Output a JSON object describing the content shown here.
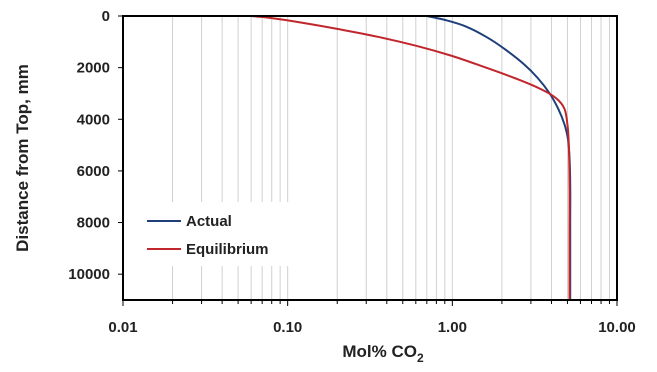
{
  "chart_data": {
    "type": "line",
    "xlabel": "Mol% CO",
    "xlabel_subscript": "2",
    "ylabel": "Distance from Top, mm",
    "xscale": "log",
    "xlim": [
      0.01,
      10
    ],
    "ylim": [
      0,
      11000
    ],
    "y_inverted": true,
    "x_ticks": [
      "0.01",
      "0.10",
      "1.00",
      "10.00"
    ],
    "y_ticks": [
      "0",
      "2000",
      "4000",
      "6000",
      "8000",
      "10000"
    ],
    "grid": "vertical minor log gridlines",
    "legend_position": "bottom-left",
    "colors": {
      "actual": "#1f3f7a",
      "equilibrium": "#c0262b",
      "grid": "#d0d0d0",
      "axis": "#000000"
    },
    "series": [
      {
        "name": "Actual",
        "points": [
          [
            0.7,
            0
          ],
          [
            0.9,
            150
          ],
          [
            1.2,
            400
          ],
          [
            1.6,
            800
          ],
          [
            2.1,
            1300
          ],
          [
            2.7,
            1850
          ],
          [
            3.3,
            2400
          ],
          [
            3.9,
            3000
          ],
          [
            4.4,
            3600
          ],
          [
            4.8,
            4200
          ],
          [
            5.05,
            4800
          ],
          [
            5.15,
            5500
          ],
          [
            5.2,
            6500
          ],
          [
            5.2,
            8000
          ],
          [
            5.2,
            9500
          ],
          [
            5.2,
            11000
          ]
        ]
      },
      {
        "name": "Equilibrium",
        "points": [
          [
            0.06,
            0
          ],
          [
            0.08,
            80
          ],
          [
            0.12,
            250
          ],
          [
            0.2,
            500
          ],
          [
            0.35,
            800
          ],
          [
            0.6,
            1150
          ],
          [
            1.0,
            1550
          ],
          [
            1.6,
            2000
          ],
          [
            2.5,
            2450
          ],
          [
            3.5,
            2850
          ],
          [
            4.3,
            3200
          ],
          [
            4.8,
            3600
          ],
          [
            5.0,
            4200
          ],
          [
            5.1,
            5000
          ],
          [
            5.15,
            6500
          ],
          [
            5.15,
            8500
          ],
          [
            5.15,
            11000
          ]
        ]
      }
    ]
  }
}
